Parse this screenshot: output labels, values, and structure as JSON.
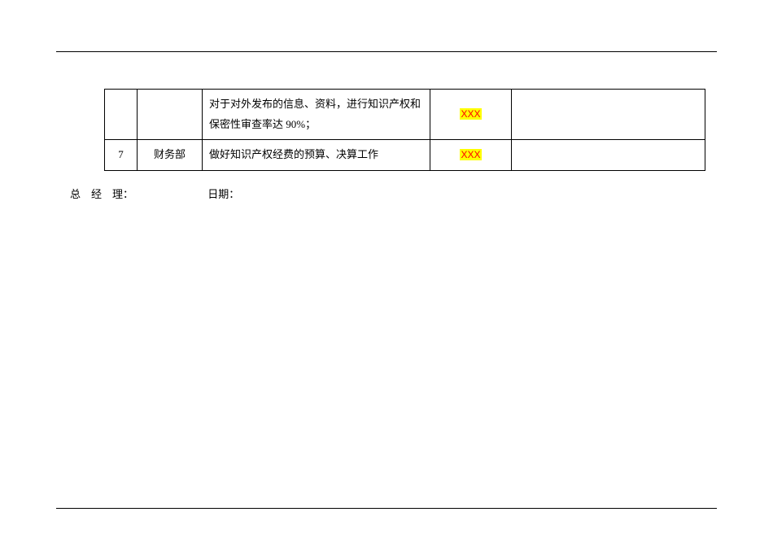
{
  "table": {
    "rows": [
      {
        "num": "",
        "dept": "",
        "desc": "对于对外发布的信息、资料，进行知识产权和保密性审查率达 90%；",
        "mark": "XXX",
        "last": ""
      },
      {
        "num": "7",
        "dept": "财务部",
        "desc": "做好知识产权经费的预算、决算工作",
        "mark": "XXX",
        "last": ""
      }
    ]
  },
  "signature": {
    "manager_label": "总　经　理：",
    "date_label": "日期："
  },
  "columns": {
    "num_width": 40,
    "dept_width": 80,
    "desc_width": 280,
    "mark_width": 100
  },
  "colors": {
    "highlight_bg": "#ffff00",
    "highlight_fg": "#ff0000",
    "border": "#000000",
    "background": "#ffffff",
    "text": "#000000"
  },
  "fonts": {
    "body_size": 13,
    "highlight_size": 12
  }
}
